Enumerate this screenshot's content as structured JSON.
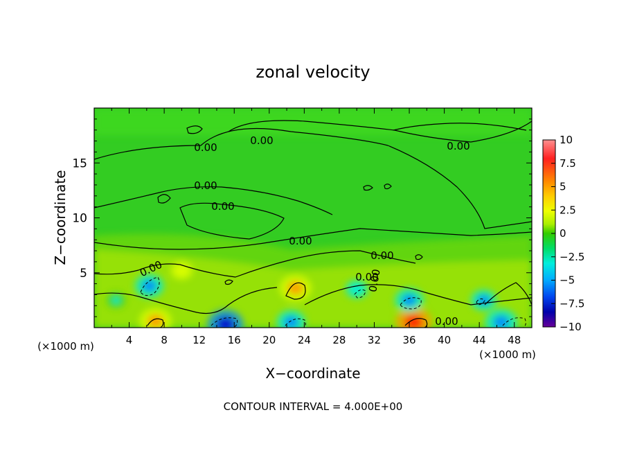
{
  "chart_data": {
    "type": "heatmap",
    "title": "zonal velocity",
    "xlabel": "X−coordinate",
    "ylabel": "Z−coordinate",
    "x_unit": "(×1000 m)",
    "y_unit": "(×1000 m)",
    "xlim": [
      0,
      50
    ],
    "ylim": [
      0,
      20
    ],
    "x_ticks": [
      4,
      8,
      12,
      16,
      20,
      24,
      28,
      32,
      36,
      40,
      44,
      48
    ],
    "y_ticks": [
      5,
      10,
      15
    ],
    "colorbar": {
      "range": [
        -10,
        10
      ],
      "ticks": [
        "10",
        "7.5",
        "5",
        "2.5",
        "0",
        "−2.5",
        "−5",
        "−7.5",
        "−10"
      ],
      "colors": [
        "#ff8080",
        "#ff2020",
        "#ff8800",
        "#ffcc00",
        "#eeff00",
        "#aaee00",
        "#33cc00",
        "#00dd66",
        "#00eedd",
        "#00aaff",
        "#0044ee",
        "#0000aa",
        "#660099"
      ]
    },
    "contour_interval": "CONTOUR INTERVAL =  4.000E+00",
    "contour_labels": [
      "0.00",
      "0.00",
      "0.00",
      "0.00",
      "0.00",
      "0.00",
      "0.00",
      "0.00",
      "0.00",
      "0.00",
      "0.00"
    ],
    "features": [
      {
        "x": 7.0,
        "z": 0.6,
        "value": 6
      },
      {
        "x": 23.0,
        "z": 3.6,
        "value": 6
      },
      {
        "x": 36.5,
        "z": 0.5,
        "value": 7
      },
      {
        "x": 10.0,
        "z": 5.2,
        "value": 3
      },
      {
        "x": 15.0,
        "z": 0.3,
        "value": -7
      },
      {
        "x": 6.3,
        "z": 3.8,
        "value": -5
      },
      {
        "x": 36.0,
        "z": 2.5,
        "value": -5
      },
      {
        "x": 46.5,
        "z": 0.5,
        "value": -6
      },
      {
        "x": 22.5,
        "z": 0.5,
        "value": -5
      },
      {
        "x": 30.0,
        "z": 3.5,
        "value": -3
      },
      {
        "x": 44.5,
        "z": 2.5,
        "value": -4
      },
      {
        "x": 2.5,
        "z": 2.5,
        "value": -2
      }
    ]
  }
}
